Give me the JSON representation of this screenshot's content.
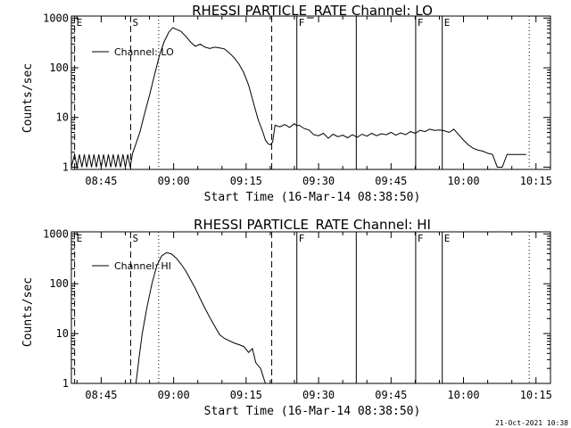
{
  "stamp": "21-Oct-2021 10:38",
  "chart_data": [
    {
      "type": "line",
      "title": "RHESSI PARTICLE_RATE Channel: LO",
      "xlabel": "Start Time (16-Mar-14 08:38:50)",
      "ylabel": "Counts/sec",
      "x_units": "minutes of day (UT)",
      "xlim": [
        518.83,
        618.0
      ],
      "x_ticks": [
        525,
        540,
        555,
        570,
        585,
        600,
        615
      ],
      "x_tick_labels": [
        "08:45",
        "09:00",
        "09:15",
        "09:30",
        "09:45",
        "10:00",
        "10:15"
      ],
      "y_scale": "log",
      "ylim": [
        0.9,
        1100
      ],
      "y_ticks": [
        1,
        10,
        100,
        1000
      ],
      "y_tick_labels": [
        "1",
        "10",
        "100",
        "1000"
      ],
      "legend": "top-left",
      "markers": [
        {
          "label": "E",
          "x": 519.5,
          "style": "dashed"
        },
        {
          "label": "S",
          "x": 531.1,
          "style": "dashed"
        },
        {
          "label": "",
          "x": 536.9,
          "style": "dotted"
        },
        {
          "label": "",
          "x": 560.3,
          "style": "dashed"
        },
        {
          "label": "F",
          "x": 565.5,
          "style": "solid"
        },
        {
          "label": "",
          "x": 577.8,
          "style": "solid"
        },
        {
          "label": "F",
          "x": 590.1,
          "style": "solid"
        },
        {
          "label": "E",
          "x": 595.6,
          "style": "solid"
        },
        {
          "label": "",
          "x": 613.6,
          "style": "dotted"
        }
      ],
      "series": [
        {
          "name": "Channel: LO",
          "x": [
            518.83,
            519.5,
            520,
            520.5,
            521,
            521.5,
            522,
            522.5,
            523,
            523.5,
            524,
            524.5,
            525,
            525.5,
            526,
            526.5,
            527,
            527.5,
            528,
            528.5,
            529,
            529.5,
            530,
            530.5,
            531,
            531.5,
            532,
            533,
            534,
            535,
            536,
            537,
            538,
            539,
            539.8,
            540.5,
            541.5,
            542.5,
            543.5,
            544.5,
            545.5,
            546.5,
            547.5,
            548.5,
            549.5,
            550.5,
            551.5,
            552.5,
            553.5,
            554.5,
            555.5,
            556.5,
            557.5,
            558.5,
            559,
            559.5,
            560,
            560.5,
            561,
            562,
            563,
            564,
            565,
            565.5,
            566,
            567,
            568,
            569,
            570,
            571,
            572,
            573,
            574,
            575,
            576,
            577,
            578,
            579,
            580,
            581,
            582,
            583,
            584,
            585,
            586,
            587,
            588,
            589,
            590,
            591,
            592,
            593,
            594,
            595,
            596,
            597,
            598,
            599,
            600,
            601,
            602,
            603,
            604,
            605,
            606,
            607,
            608,
            609,
            610,
            611,
            612,
            613
          ],
          "y": [
            1,
            1.8,
            1,
            1.8,
            1,
            1.8,
            1,
            1.8,
            1,
            1.8,
            1,
            1.8,
            1,
            1.8,
            1,
            1.8,
            1,
            1.8,
            1,
            1.8,
            1,
            1.8,
            1,
            1.8,
            1,
            1.9,
            2.6,
            5,
            12,
            28,
            70,
            170,
            330,
            520,
            640,
            600,
            540,
            430,
            330,
            270,
            300,
            260,
            245,
            260,
            250,
            240,
            200,
            160,
            120,
            80,
            45,
            20,
            9,
            5,
            3.5,
            3,
            2.8,
            3.2,
            7,
            6.5,
            7.2,
            6.3,
            7.5,
            6.8,
            7,
            6,
            5.6,
            4.5,
            4.3,
            4.8,
            3.8,
            4.6,
            4.1,
            4.4,
            3.9,
            4.5,
            4,
            4.6,
            4.2,
            4.8,
            4.3,
            4.7,
            4.5,
            5,
            4.4,
            4.9,
            4.5,
            5.2,
            4.8,
            5.5,
            5.2,
            5.8,
            5.5,
            5.6,
            5.4,
            5,
            5.8,
            4.5,
            3.5,
            2.8,
            2.4,
            2.2,
            2.1,
            1.9,
            1.8,
            1,
            1,
            1.8,
            1.8,
            1.8,
            1.8,
            1.8
          ]
        }
      ]
    },
    {
      "type": "line",
      "title": "RHESSI PARTICLE_RATE Channel: HI",
      "xlabel": "Start Time (16-Mar-14 08:38:50)",
      "ylabel": "Counts/sec",
      "x_units": "minutes of day (UT)",
      "xlim": [
        518.83,
        618.0
      ],
      "x_ticks": [
        525,
        540,
        555,
        570,
        585,
        600,
        615
      ],
      "x_tick_labels": [
        "08:45",
        "09:00",
        "09:15",
        "09:30",
        "09:45",
        "10:00",
        "10:15"
      ],
      "y_scale": "log",
      "ylim": [
        1,
        1100
      ],
      "y_ticks": [
        1,
        10,
        100,
        1000
      ],
      "y_tick_labels": [
        "1",
        "10",
        "100",
        "1000"
      ],
      "legend": "top-left",
      "markers": [
        {
          "label": "E",
          "x": 519.5,
          "style": "dashed"
        },
        {
          "label": "S",
          "x": 531.1,
          "style": "dashed"
        },
        {
          "label": "",
          "x": 536.9,
          "style": "dotted"
        },
        {
          "label": "",
          "x": 560.3,
          "style": "dashed"
        },
        {
          "label": "F",
          "x": 565.5,
          "style": "solid"
        },
        {
          "label": "",
          "x": 577.8,
          "style": "solid"
        },
        {
          "label": "F",
          "x": 590.1,
          "style": "solid"
        },
        {
          "label": "E",
          "x": 595.6,
          "style": "solid"
        },
        {
          "label": "",
          "x": 613.6,
          "style": "dotted"
        }
      ],
      "series": [
        {
          "name": "Channel: HI",
          "x": [
            532.2,
            532.8,
            533.5,
            534.5,
            535.5,
            536.5,
            537.5,
            538.5,
            539.5,
            540.5,
            541.5,
            542.5,
            543.5,
            544.5,
            545.5,
            546.5,
            547.5,
            548.5,
            549.5,
            550.5,
            551.5,
            552.5,
            553.5,
            554.5,
            555.5,
            556.3,
            557,
            558,
            558.5,
            559
          ],
          "y": [
            1,
            3,
            10,
            35,
            100,
            230,
            360,
            420,
            400,
            330,
            250,
            180,
            120,
            80,
            50,
            32,
            21,
            14,
            9.5,
            8,
            7.2,
            6.5,
            6,
            5.5,
            4.2,
            5,
            2.6,
            2,
            1.4,
            1
          ]
        }
      ]
    }
  ]
}
